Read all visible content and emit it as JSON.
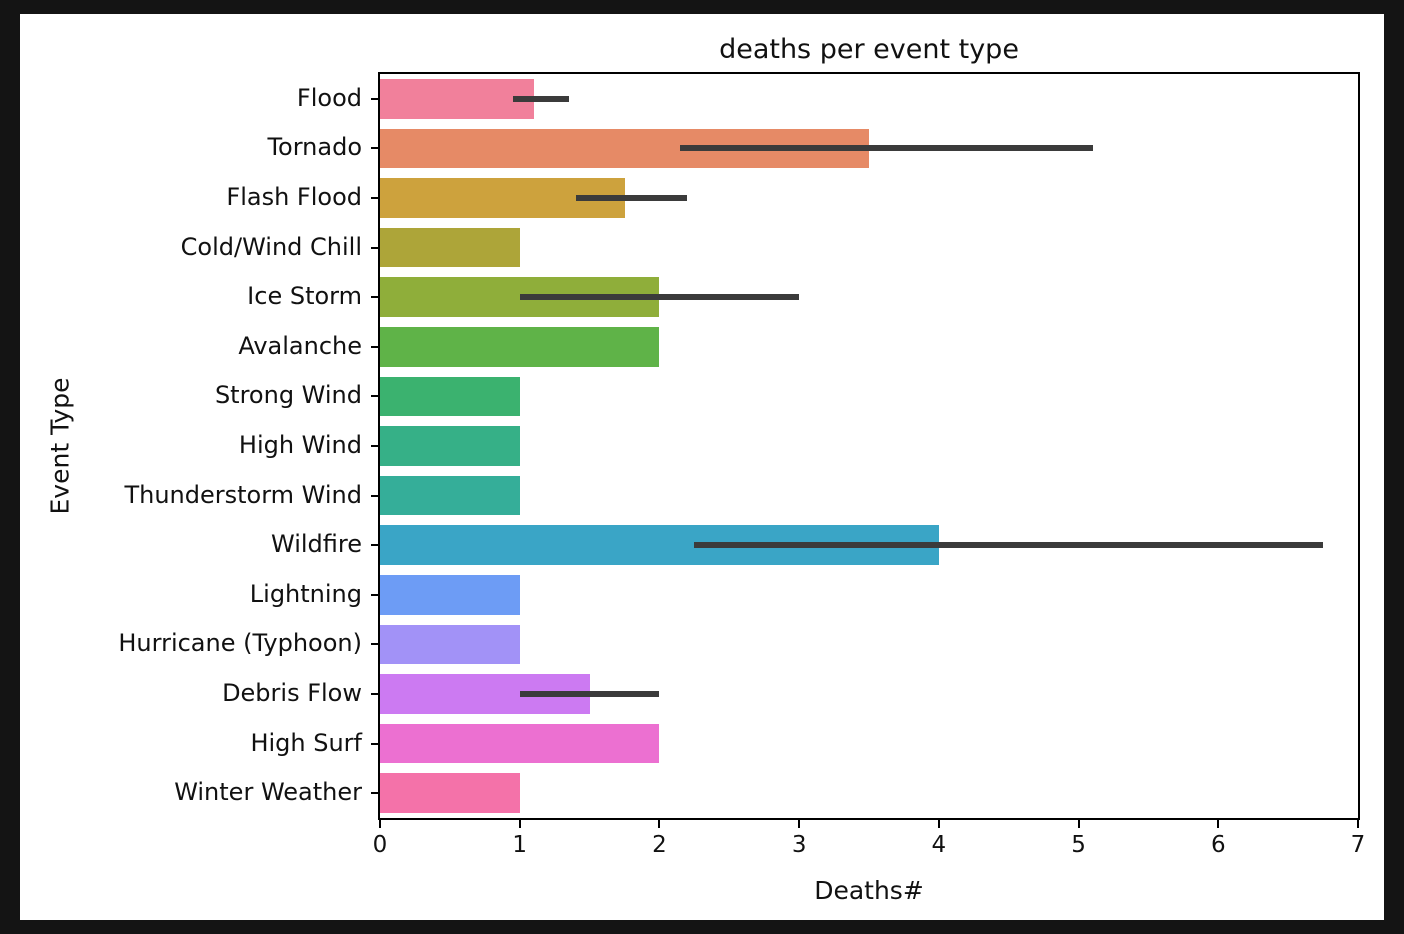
{
  "chart_data": {
    "type": "bar",
    "orientation": "horizontal",
    "title": "deaths per event type",
    "xlabel": "Deaths#",
    "ylabel": "Event Type",
    "xlim": [
      0,
      7
    ],
    "xticks": [
      0,
      1,
      2,
      3,
      4,
      5,
      6,
      7
    ],
    "grid": false,
    "error_bar_color": "#3b3b3b",
    "rows": [
      {
        "label": "Flood",
        "value": 1.1,
        "error": [
          0.95,
          1.35
        ],
        "color": "#f1809b"
      },
      {
        "label": "Tornado",
        "value": 3.5,
        "error": [
          2.15,
          5.1
        ],
        "color": "#e68a66"
      },
      {
        "label": "Flash Flood",
        "value": 1.75,
        "error": [
          1.4,
          2.2
        ],
        "color": "#cda23d"
      },
      {
        "label": "Cold/Wind Chill",
        "value": 1.0,
        "error": null,
        "color": "#ada539"
      },
      {
        "label": "Ice Storm",
        "value": 2.0,
        "error": [
          1.0,
          3.0
        ],
        "color": "#8fae3a"
      },
      {
        "label": "Avalanche",
        "value": 2.0,
        "error": null,
        "color": "#5fb348"
      },
      {
        "label": "Strong Wind",
        "value": 1.0,
        "error": null,
        "color": "#3bb26f"
      },
      {
        "label": "High Wind",
        "value": 1.0,
        "error": null,
        "color": "#36b087"
      },
      {
        "label": "Thunderstorm Wind",
        "value": 1.0,
        "error": null,
        "color": "#35ae99"
      },
      {
        "label": "Wildfire",
        "value": 4.0,
        "error": [
          2.25,
          6.75
        ],
        "color": "#3aa5c6"
      },
      {
        "label": "Lightning",
        "value": 1.0,
        "error": null,
        "color": "#6d9cf5"
      },
      {
        "label": "Hurricane (Typhoon)",
        "value": 1.0,
        "error": null,
        "color": "#a292f7"
      },
      {
        "label": "Debris Flow",
        "value": 1.5,
        "error": [
          1.0,
          2.0
        ],
        "color": "#cc7af2"
      },
      {
        "label": "High Surf",
        "value": 2.0,
        "error": null,
        "color": "#ec70d1"
      },
      {
        "label": "Winter Weather",
        "value": 1.0,
        "error": null,
        "color": "#f472a9"
      }
    ]
  }
}
